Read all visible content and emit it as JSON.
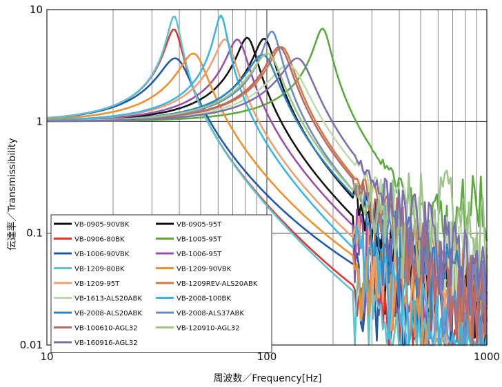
{
  "chart_data": {
    "type": "line",
    "xscale": "log",
    "yscale": "log",
    "xlim": [
      10,
      1000
    ],
    "ylim": [
      0.01,
      10
    ],
    "grid": true,
    "xlabel": "周波数／Frequency[Hz]",
    "ylabel": "伝達率／Transmissibility",
    "x_ticks": [
      {
        "v": 10,
        "label": "10"
      },
      {
        "v": 100,
        "label": "100"
      },
      {
        "v": 1000,
        "label": "1000"
      }
    ],
    "y_ticks": [
      {
        "v": 0.01,
        "label": "0.01"
      },
      {
        "v": 0.1,
        "label": "0.1"
      },
      {
        "v": 1,
        "label": "1"
      },
      {
        "v": 10,
        "label": "10"
      }
    ],
    "legend_position": "bottom-left",
    "series": [
      {
        "name": "VB-0905-90VBK",
        "color": "#111111",
        "fn": 82,
        "peak": 5.5,
        "hf": "mid"
      },
      {
        "name": "VB-0905-95T",
        "color": "#111111",
        "fn": 98,
        "peak": 5.4,
        "hf": "mid"
      },
      {
        "name": "VB-0906-80BK",
        "color": "#e8302e",
        "fn": 38,
        "peak": 6.6,
        "hf": "low"
      },
      {
        "name": "VB-1005-95T",
        "color": "#5aab3c",
        "fn": 180,
        "peak": 6.7,
        "hf": "high"
      },
      {
        "name": "VB-1006-90VBK",
        "color": "#2058a8",
        "fn": 39,
        "peak": 3.5,
        "hf": "mid"
      },
      {
        "name": "VB-1006-95T",
        "color": "#9a4fa8",
        "fn": 74,
        "peak": 5.3,
        "hf": "mid"
      },
      {
        "name": "VB-1209-80BK",
        "color": "#5cc3d0",
        "fn": 38,
        "peak": 8.7,
        "hf": "low"
      },
      {
        "name": "VB-1209-90VBK",
        "color": "#f0902a",
        "fn": 47,
        "peak": 3.9,
        "hf": "mid"
      },
      {
        "name": "VB-1209-95T",
        "color": "#f0a070",
        "fn": 65,
        "peak": 5.3,
        "hf": "mid"
      },
      {
        "name": "VB-1209REV-ALS20ABK",
        "color": "#d27a40",
        "fn": 118,
        "peak": 4.5,
        "hf": "mid"
      },
      {
        "name": "VB-1613-ALS20ABK",
        "color": "#bcdcb0",
        "fn": 128,
        "peak": 3.0,
        "hf": "mid"
      },
      {
        "name": "VB-2008-100BK",
        "color": "#38b6e6",
        "fn": 62,
        "peak": 8.8,
        "hf": "low"
      },
      {
        "name": "VB-2008-ALS20ABK",
        "color": "#2a86c8",
        "fn": 97,
        "peak": 3.8,
        "hf": "mid"
      },
      {
        "name": "VB-2008-ALS37ABK",
        "color": "#6a8cc6",
        "fn": 106,
        "peak": 6.3,
        "hf": "mid"
      },
      {
        "name": "VB-100610-AGL32",
        "color": "#b86a6a",
        "fn": 115,
        "peak": 4.5,
        "hf": "mid"
      },
      {
        "name": "VB-120910-AGL32",
        "color": "#9ec48a",
        "fn": 102,
        "peak": 3.9,
        "hf": "high"
      },
      {
        "name": "VB-160916-AGL32",
        "color": "#7d6eae",
        "fn": 140,
        "peak": 3.5,
        "hf": "mid"
      }
    ]
  }
}
